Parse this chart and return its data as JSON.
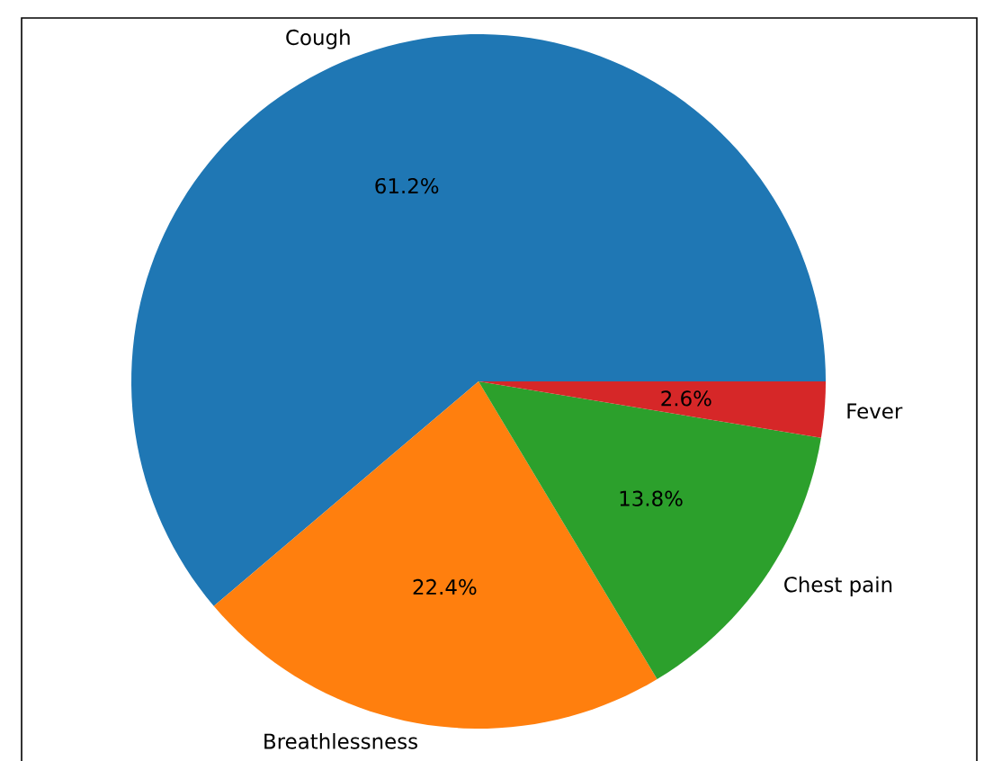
{
  "chart_data": {
    "type": "pie",
    "categories": [
      "Cough",
      "Breathlessness",
      "Chest pain",
      "Fever"
    ],
    "values": [
      61.2,
      22.4,
      13.8,
      2.6
    ],
    "colors": [
      "#1f77b4",
      "#ff7f0e",
      "#2ca02c",
      "#d62728"
    ],
    "value_labels": [
      "61.2%",
      "22.4%",
      "13.8%",
      "2.6%"
    ]
  }
}
